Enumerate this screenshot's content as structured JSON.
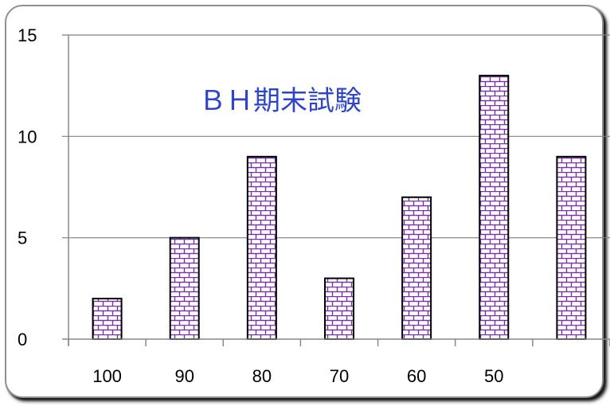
{
  "chart_data": {
    "type": "bar",
    "title": "ＢＨ期末試験",
    "categories": [
      "100",
      "90",
      "80",
      "70",
      "60",
      "50",
      ""
    ],
    "values": [
      2,
      5,
      9,
      3,
      7,
      13,
      9
    ],
    "ylim": [
      0,
      15
    ],
    "yticks": [
      0,
      5,
      10,
      15
    ],
    "grid": true,
    "bar_pattern": "brick",
    "colors": {
      "bar_fill": "#ffffff",
      "brick_lines": "#7a2fa8",
      "bar_border": "#000000",
      "gridline": "#7f7f7f",
      "title": "#2f45c9"
    }
  }
}
